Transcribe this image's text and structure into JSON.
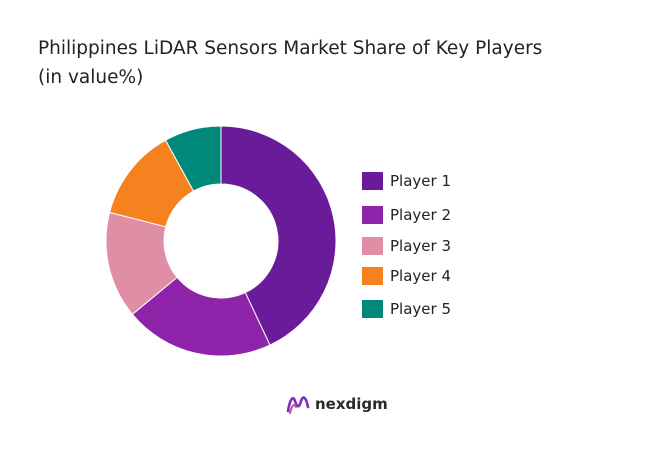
{
  "title": {
    "line1": "Philippines LiDAR Sensors Market Share of Key Players",
    "line2": "(in value%)"
  },
  "chart_data": {
    "type": "pie",
    "style": "donut",
    "legend_position": "right",
    "slices": [
      {
        "label": "Player 1",
        "value": 43,
        "color": "#6a1b9a"
      },
      {
        "label": "Player 2",
        "value": 21,
        "color": "#8e24aa"
      },
      {
        "label": "Player 3",
        "value": 15,
        "color": "#e08ea6"
      },
      {
        "label": "Player 4",
        "value": 13,
        "color": "#f5821f"
      },
      {
        "label": "Player 5",
        "value": 8,
        "color": "#00897b"
      }
    ]
  },
  "brand": {
    "name": "nexdigm",
    "icon": "nexdigm-logo-icon"
  }
}
